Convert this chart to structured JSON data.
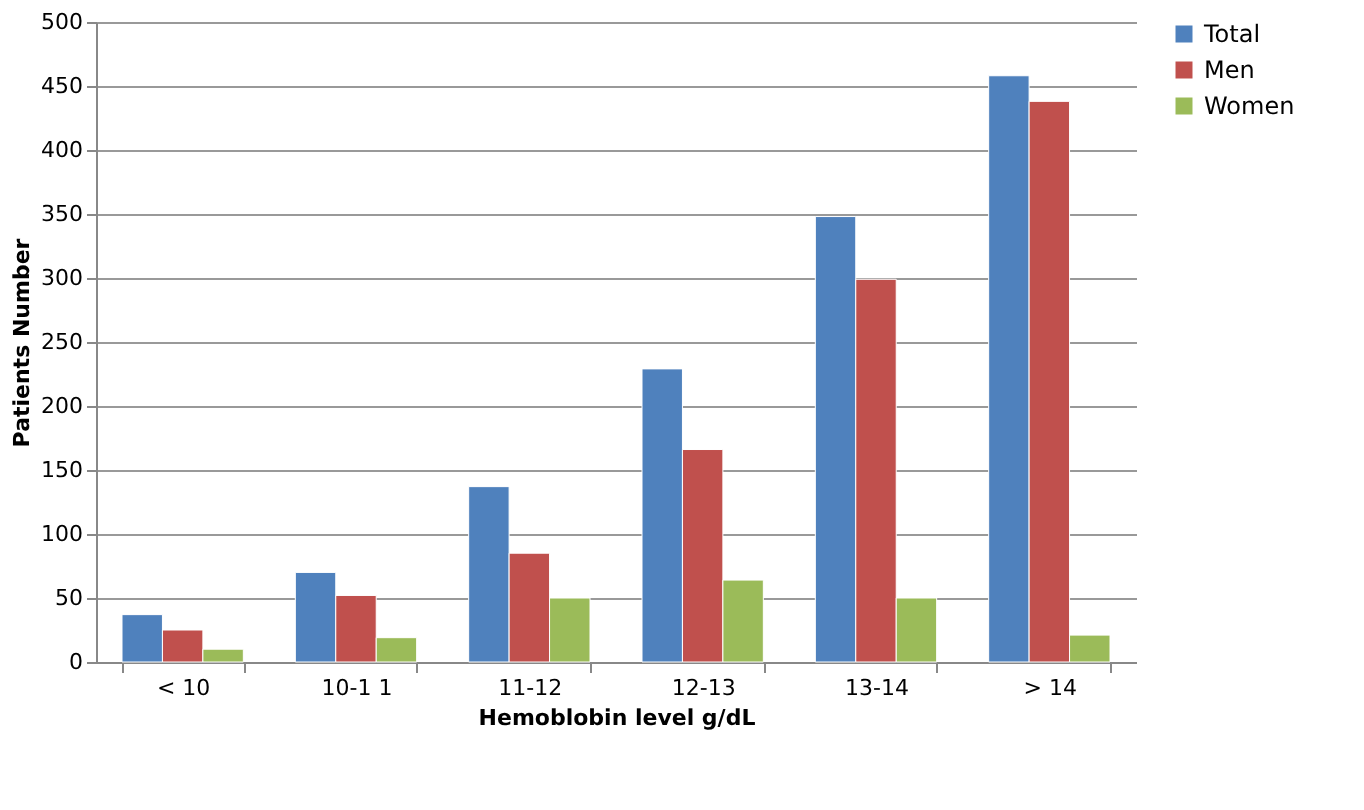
{
  "chart_data": {
    "type": "bar",
    "xlabel": "Hemoblobin level  g/dL",
    "ylabel": "Patients Number",
    "categories": [
      "< 10",
      "10-1 1",
      "11-12",
      "12-13",
      "13-14",
      "> 14"
    ],
    "series": [
      {
        "name": "Total",
        "color": "#4f81bd",
        "values": [
          37,
          70,
          137,
          229,
          348,
          458
        ]
      },
      {
        "name": "Men",
        "color": "#c0504d",
        "values": [
          25,
          52,
          85,
          166,
          299,
          438
        ]
      },
      {
        "name": "Women",
        "color": "#9bbb59",
        "values": [
          10,
          19,
          50,
          64,
          50,
          21
        ]
      }
    ],
    "ylim": [
      0,
      500
    ],
    "yticks": [
      0,
      50,
      100,
      150,
      200,
      250,
      300,
      350,
      400,
      450,
      500
    ],
    "grid": "y",
    "legend": "right"
  }
}
